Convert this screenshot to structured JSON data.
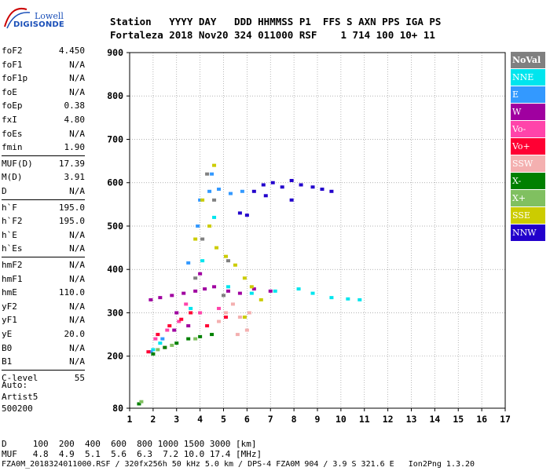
{
  "logo": {
    "line1": "Lowell",
    "line2": "DIGISONDE"
  },
  "header": {
    "line1": "Station   YYYY DAY   DDD HHMMSS P1  FFS S AXN PPS IGA PS",
    "line2": "Fortaleza 2018 Nov20 324 011000 RSF    1 714 100 10+ 11"
  },
  "params": [
    {
      "name": "foF2",
      "value": "4.450"
    },
    {
      "name": "foF1",
      "value": "N/A"
    },
    {
      "name": "foF1p",
      "value": "N/A"
    },
    {
      "name": "foE",
      "value": "N/A"
    },
    {
      "name": "foEp",
      "value": "0.38"
    },
    {
      "name": "fxI",
      "value": "4.80"
    },
    {
      "name": "foEs",
      "value": "N/A"
    },
    {
      "name": "fmin",
      "value": "1.90"
    },
    {
      "name": "MUF(D)",
      "value": "17.39"
    },
    {
      "name": "M(D)",
      "value": "3.91"
    },
    {
      "name": "D",
      "value": "N/A"
    },
    {
      "name": "h`F",
      "value": "195.0"
    },
    {
      "name": "h`F2",
      "value": "195.0"
    },
    {
      "name": "h`E",
      "value": "N/A"
    },
    {
      "name": "h`Es",
      "value": "N/A"
    },
    {
      "name": "hmF2",
      "value": "N/A"
    },
    {
      "name": "hmF1",
      "value": "N/A"
    },
    {
      "name": "hmE",
      "value": "110.0"
    },
    {
      "name": "yF2",
      "value": "N/A"
    },
    {
      "name": "yF1",
      "value": "N/A"
    },
    {
      "name": "yE",
      "value": "20.0"
    },
    {
      "name": "B0",
      "value": "N/A"
    },
    {
      "name": "B1",
      "value": "N/A"
    },
    {
      "name": "C-level",
      "value": "55"
    }
  ],
  "auto": {
    "line1": "Auto:",
    "line2": "Artist5",
    "line3": "500200"
  },
  "legend": [
    {
      "label": "NoVal",
      "color": "#808080"
    },
    {
      "label": "NNE",
      "color": "#00e5ee"
    },
    {
      "label": "E",
      "color": "#3399ff"
    },
    {
      "label": "W",
      "color": "#a000a0"
    },
    {
      "label": "Vo-",
      "color": "#ff44aa"
    },
    {
      "label": "Vo+",
      "color": "#ff0033"
    },
    {
      "label": "SSW",
      "color": "#f4b0b0"
    },
    {
      "label": "X-",
      "color": "#008000"
    },
    {
      "label": "X+",
      "color": "#80c060"
    },
    {
      "label": "SSE",
      "color": "#cccc00"
    },
    {
      "label": "NNW",
      "color": "#2200cc"
    }
  ],
  "footer": {
    "line1": "D     100  200  400  600  800 1000 1500 3000 [km]",
    "line2": "MUF   4.8  4.9  5.1  5.6  6.3  7.2 10.0 17.4 [MHz]",
    "line3": "FZA0M_2018324011000.RSF / 320fx256h 50 kHz 5.0 km / DPS-4 FZA0M 904 / 3.9 S 321.6 E   Ion2Png 1.3.20"
  },
  "chart_data": {
    "type": "scatter",
    "title": "",
    "xlabel": "",
    "ylabel": "",
    "xlim": [
      1,
      17
    ],
    "ylim": [
      80,
      900
    ],
    "xticks": [
      1,
      2,
      3,
      4,
      5,
      6,
      7,
      8,
      9,
      10,
      11,
      12,
      13,
      14,
      15,
      16,
      17
    ],
    "yticks": [
      80,
      200,
      300,
      400,
      500,
      600,
      700,
      800,
      900
    ],
    "grid": true,
    "series": [
      {
        "name": "NNE",
        "color": "#00e5ee",
        "points": [
          [
            2.0,
            215
          ],
          [
            2.3,
            230
          ],
          [
            3.6,
            310
          ],
          [
            4.1,
            420
          ],
          [
            4.6,
            520
          ],
          [
            5.2,
            360
          ],
          [
            6.2,
            345
          ],
          [
            7.2,
            350
          ],
          [
            8.2,
            355
          ],
          [
            8.8,
            345
          ],
          [
            9.6,
            335
          ],
          [
            10.3,
            332
          ],
          [
            10.8,
            330
          ]
        ]
      },
      {
        "name": "E",
        "color": "#3399ff",
        "points": [
          [
            1.9,
            210
          ],
          [
            2.4,
            240
          ],
          [
            3.5,
            415
          ],
          [
            4.0,
            560
          ],
          [
            4.4,
            580
          ],
          [
            4.8,
            585
          ],
          [
            5.3,
            575
          ],
          [
            5.8,
            580
          ],
          [
            4.5,
            620
          ],
          [
            3.9,
            500
          ]
        ]
      },
      {
        "name": "W",
        "color": "#a000a0",
        "points": [
          [
            1.9,
            330
          ],
          [
            2.3,
            335
          ],
          [
            2.8,
            340
          ],
          [
            3.3,
            345
          ],
          [
            3.8,
            350
          ],
          [
            4.2,
            355
          ],
          [
            4.6,
            360
          ],
          [
            5.2,
            350
          ],
          [
            5.7,
            345
          ],
          [
            6.3,
            355
          ],
          [
            7.0,
            350
          ],
          [
            3.0,
            300
          ],
          [
            4.0,
            390
          ],
          [
            2.9,
            260
          ],
          [
            3.5,
            270
          ]
        ]
      },
      {
        "name": "Vo-",
        "color": "#ff44aa",
        "points": [
          [
            2.1,
            240
          ],
          [
            2.6,
            260
          ],
          [
            3.1,
            280
          ],
          [
            4.0,
            300
          ],
          [
            4.8,
            310
          ],
          [
            3.4,
            320
          ],
          [
            2.5,
            220
          ]
        ]
      },
      {
        "name": "Vo+",
        "color": "#ff0033",
        "points": [
          [
            1.8,
            210
          ],
          [
            2.2,
            250
          ],
          [
            2.7,
            270
          ],
          [
            3.2,
            285
          ],
          [
            3.6,
            300
          ],
          [
            4.3,
            270
          ],
          [
            5.1,
            290
          ]
        ]
      },
      {
        "name": "SSW",
        "color": "#f4b0b0",
        "points": [
          [
            4.8,
            280
          ],
          [
            5.1,
            300
          ],
          [
            5.4,
            320
          ],
          [
            5.7,
            290
          ],
          [
            6.0,
            260
          ],
          [
            6.1,
            300
          ],
          [
            5.6,
            250
          ]
        ]
      },
      {
        "name": "X-",
        "color": "#008000",
        "points": [
          [
            1.4,
            90
          ],
          [
            2.0,
            205
          ],
          [
            2.5,
            220
          ],
          [
            3.0,
            230
          ],
          [
            3.5,
            240
          ],
          [
            4.0,
            245
          ],
          [
            4.5,
            250
          ]
        ]
      },
      {
        "name": "X+",
        "color": "#80c060",
        "points": [
          [
            1.5,
            95
          ],
          [
            2.2,
            215
          ],
          [
            2.8,
            225
          ],
          [
            3.8,
            240
          ]
        ]
      },
      {
        "name": "SSE",
        "color": "#cccc00",
        "points": [
          [
            4.1,
            560
          ],
          [
            4.4,
            500
          ],
          [
            4.7,
            450
          ],
          [
            5.1,
            430
          ],
          [
            5.5,
            410
          ],
          [
            5.9,
            380
          ],
          [
            6.2,
            360
          ],
          [
            3.8,
            470
          ],
          [
            4.6,
            640
          ],
          [
            5.9,
            290
          ],
          [
            6.6,
            330
          ]
        ]
      },
      {
        "name": "NNW",
        "color": "#2200cc",
        "points": [
          [
            6.3,
            580
          ],
          [
            6.7,
            595
          ],
          [
            7.1,
            600
          ],
          [
            7.5,
            590
          ],
          [
            7.9,
            605
          ],
          [
            8.3,
            595
          ],
          [
            8.8,
            590
          ],
          [
            9.2,
            585
          ],
          [
            9.6,
            580
          ],
          [
            5.7,
            530
          ],
          [
            6.0,
            525
          ],
          [
            7.9,
            560
          ],
          [
            6.8,
            570
          ]
        ]
      },
      {
        "name": "NoVal",
        "color": "#808080",
        "points": [
          [
            4.3,
            620
          ],
          [
            4.6,
            560
          ],
          [
            3.8,
            380
          ],
          [
            4.1,
            470
          ],
          [
            5.2,
            420
          ],
          [
            5.0,
            340
          ]
        ]
      }
    ]
  }
}
